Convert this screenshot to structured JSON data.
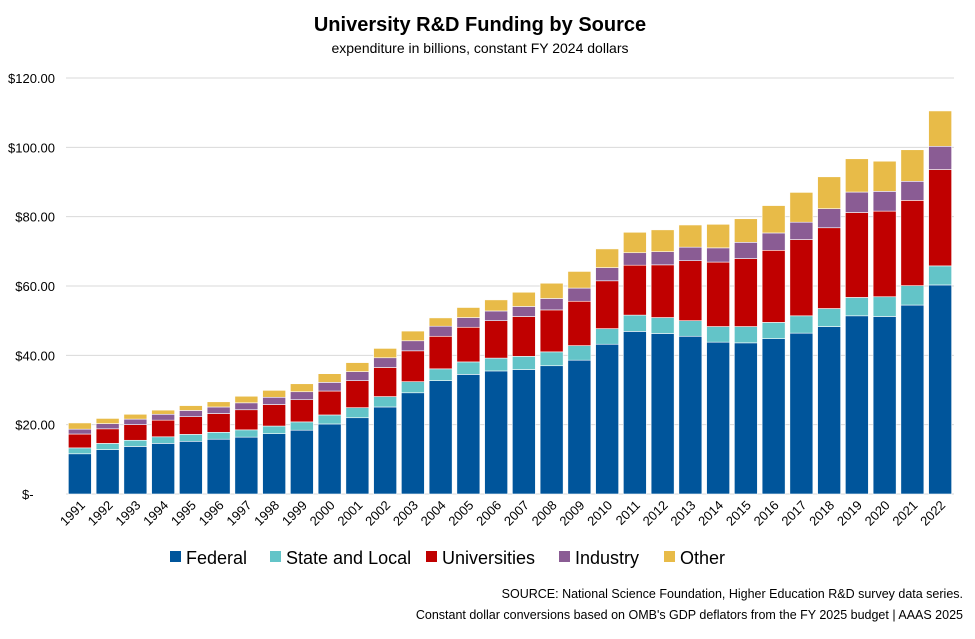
{
  "chart_data": {
    "type": "bar",
    "stacked": true,
    "title": "University R&D Funding by Source",
    "subtitle": "expenditure in billions, constant FY 2024 dollars",
    "xlabel": "",
    "ylabel": "",
    "ylim": [
      0,
      120
    ],
    "yticks": [
      0,
      20,
      40,
      60,
      80,
      100,
      120
    ],
    "ytick_labels": [
      "$-",
      "$20.00",
      "$40.00",
      "$60.00",
      "$80.00",
      "$100.00",
      "$120.00"
    ],
    "grid": true,
    "legend_position": "bottom",
    "categories": [
      "1991",
      "1992",
      "1993",
      "1994",
      "1995",
      "1996",
      "1997",
      "1998",
      "1999",
      "2000",
      "2001",
      "2002",
      "2003",
      "2004",
      "2005",
      "2006",
      "2007",
      "2008",
      "2009",
      "2010",
      "2011",
      "2012",
      "2013",
      "2014",
      "2015",
      "2016",
      "2017",
      "2018",
      "2019",
      "2020",
      "2021",
      "2022"
    ],
    "series": [
      {
        "name": "Federal",
        "color": "#00559b",
        "values": [
          11.6,
          12.8,
          13.7,
          14.6,
          15.2,
          15.8,
          16.4,
          17.4,
          18.4,
          20.2,
          22.0,
          25.1,
          29.2,
          32.7,
          34.5,
          35.5,
          35.9,
          37.0,
          38.6,
          43.2,
          46.9,
          46.3,
          45.5,
          43.8,
          43.6,
          44.8,
          46.4,
          48.3,
          51.4,
          51.2,
          54.5,
          60.3
        ]
      },
      {
        "name": "State and Local",
        "color": "#63c4c8",
        "values": [
          1.7,
          1.8,
          1.8,
          1.9,
          2.0,
          2.0,
          2.1,
          2.2,
          2.4,
          2.6,
          2.9,
          3.0,
          3.2,
          3.4,
          3.6,
          3.7,
          3.8,
          4.0,
          4.2,
          4.5,
          4.7,
          4.6,
          4.5,
          4.5,
          4.7,
          4.7,
          5.0,
          5.2,
          5.3,
          5.7,
          5.6,
          5.5
        ]
      },
      {
        "name": "Universities",
        "color": "#c00000",
        "values": [
          4.0,
          4.2,
          4.5,
          4.8,
          5.1,
          5.4,
          5.8,
          6.2,
          6.4,
          6.9,
          7.8,
          8.4,
          8.9,
          9.4,
          10.0,
          10.8,
          11.5,
          12.1,
          12.8,
          13.8,
          14.4,
          15.2,
          17.3,
          18.6,
          19.6,
          20.8,
          22.0,
          23.3,
          24.5,
          24.7,
          24.6,
          27.8
        ]
      },
      {
        "name": "Industry",
        "color": "#8a5c94",
        "values": [
          1.4,
          1.5,
          1.6,
          1.7,
          1.8,
          1.9,
          2.0,
          2.1,
          2.3,
          2.5,
          2.6,
          2.8,
          2.9,
          2.9,
          2.8,
          2.8,
          2.9,
          3.3,
          3.8,
          3.8,
          3.6,
          3.8,
          3.9,
          4.1,
          4.7,
          5.0,
          5.0,
          5.5,
          5.9,
          5.7,
          5.5,
          6.7
        ]
      },
      {
        "name": "Other",
        "color": "#e8bb48",
        "values": [
          1.8,
          1.5,
          1.4,
          1.2,
          1.4,
          1.5,
          1.9,
          2.0,
          2.3,
          2.5,
          2.6,
          2.7,
          2.8,
          2.4,
          2.9,
          3.2,
          4.1,
          4.4,
          4.8,
          5.4,
          5.9,
          6.3,
          6.4,
          6.8,
          6.8,
          7.9,
          8.6,
          9.2,
          9.6,
          8.7,
          9.1,
          10.2
        ]
      }
    ],
    "source_lines": [
      "SOURCE: National Science Foundation, Higher Education R&D survey data series.",
      "Constant dollar conversions based on OMB's GDP deflators from the FY 2025 budget | AAAS 2025"
    ]
  }
}
